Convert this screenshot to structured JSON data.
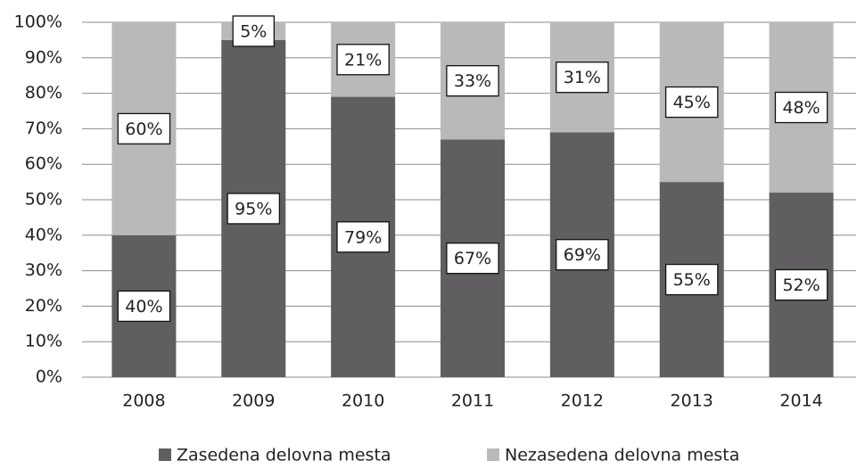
{
  "chart_data": {
    "type": "stacked_bar",
    "categories": [
      "2008",
      "2009",
      "2010",
      "2011",
      "2012",
      "2013",
      "2014"
    ],
    "series": [
      {
        "name": "Zasedena delovna mesta",
        "color": "#605e60",
        "values": [
          40,
          95,
          79,
          67,
          69,
          55,
          52
        ],
        "value_labels": [
          "40%",
          "95%",
          "79%",
          "67%",
          "69%",
          "55%",
          "52%"
        ]
      },
      {
        "name": "Nezasedena delovna mesta",
        "color": "#bab9ba",
        "values": [
          60,
          5,
          21,
          33,
          31,
          45,
          48
        ],
        "value_labels": [
          "60%",
          "5%",
          "21%",
          "33%",
          "31%",
          "45%",
          "48%"
        ]
      }
    ],
    "ylim": [
      0,
      100
    ],
    "yticks": [
      {
        "value": 0,
        "label": "0%"
      },
      {
        "value": 10,
        "label": "10%"
      },
      {
        "value": 20,
        "label": "20%"
      },
      {
        "value": 30,
        "label": "30%"
      },
      {
        "value": 40,
        "label": "40%"
      },
      {
        "value": 50,
        "label": "50%"
      },
      {
        "value": 60,
        "label": "60%"
      },
      {
        "value": 70,
        "label": "70%"
      },
      {
        "value": 80,
        "label": "80%"
      },
      {
        "value": 90,
        "label": "90%"
      },
      {
        "value": 100,
        "label": "100%"
      }
    ],
    "grid": true,
    "legend": "bottom"
  }
}
